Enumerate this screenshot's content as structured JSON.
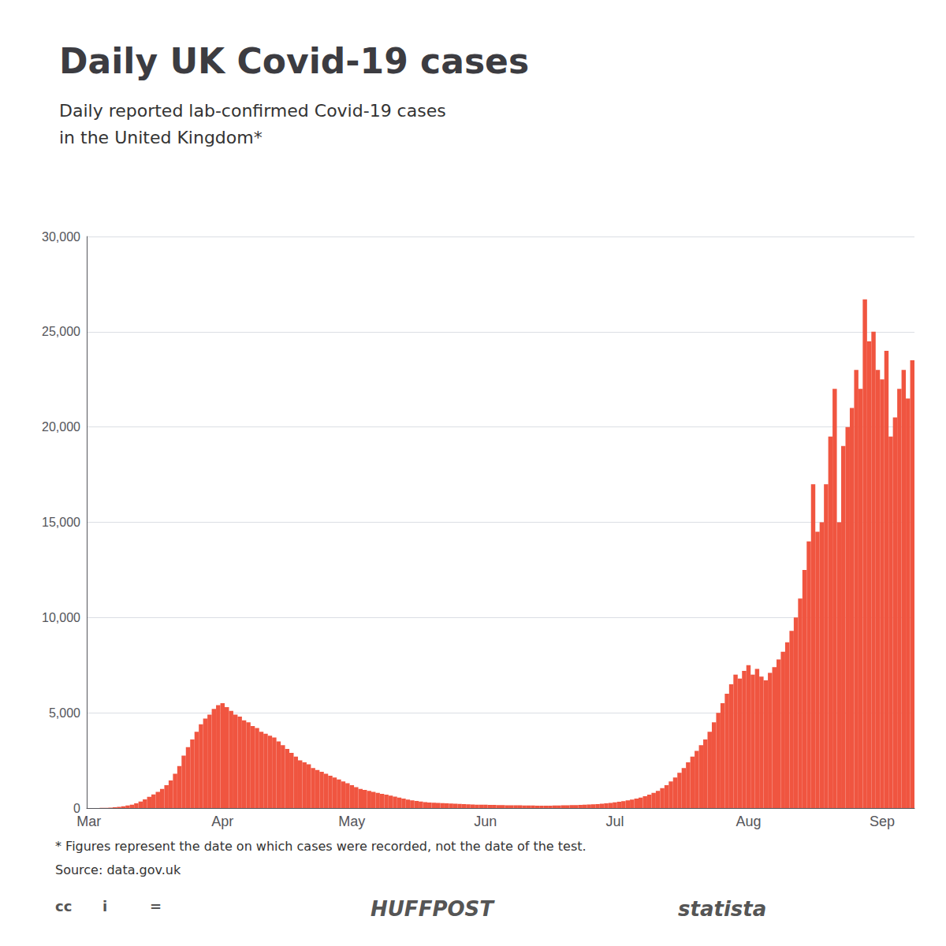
{
  "chart_data": {
    "type": "bar",
    "title": "Daily UK Covid-19 cases",
    "subtitle": [
      "Daily reported lab-confirmed Covid-19 cases",
      "in the United Kingdom*"
    ],
    "footnotes": [
      "* Figures represent the date on which cases were recorded, not the date of the test.",
      "Source: data.gov.uk"
    ],
    "logos": [
      "cc",
      "i",
      "=",
      "HUFFPOST",
      "statista"
    ],
    "color": "#f05540",
    "grid": true,
    "ylim": [
      0,
      30000
    ],
    "yticks": [
      0,
      {
        "value": 5000,
        "label": "5,000"
      },
      {
        "value": 10000,
        "label": "10,000"
      },
      {
        "value": 15000,
        "label": "15,000"
      },
      {
        "value": 20000,
        "label": "20,000"
      },
      {
        "value": 25000,
        "label": "25,000"
      },
      {
        "value": 30000,
        "label": "30,000"
      }
    ],
    "categories": [
      "Mar",
      null,
      null,
      null,
      null,
      null,
      null,
      null,
      null,
      null,
      null,
      null,
      null,
      null,
      null,
      null,
      null,
      null,
      null,
      null,
      null,
      null,
      null,
      null,
      null,
      null,
      null,
      null,
      null,
      null,
      null,
      "Apr",
      null,
      null,
      null,
      null,
      null,
      null,
      null,
      null,
      null,
      null,
      null,
      null,
      null,
      null,
      null,
      null,
      null,
      null,
      null,
      null,
      null,
      null,
      null,
      null,
      null,
      null,
      null,
      null,
      null,
      "May",
      null,
      null,
      null,
      null,
      null,
      null,
      null,
      null,
      null,
      null,
      null,
      null,
      null,
      null,
      null,
      null,
      null,
      null,
      null,
      null,
      null,
      null,
      null,
      null,
      null,
      null,
      null,
      null,
      null,
      null,
      "Jun",
      null,
      null,
      null,
      null,
      null,
      null,
      null,
      null,
      null,
      null,
      null,
      null,
      null,
      null,
      null,
      null,
      null,
      null,
      null,
      null,
      null,
      null,
      null,
      null,
      null,
      null,
      null,
      null,
      null,
      "Jul",
      null,
      null,
      null,
      null,
      null,
      null,
      null,
      null,
      null,
      null,
      null,
      null,
      null,
      null,
      null,
      null,
      null,
      null,
      null,
      null,
      null,
      null,
      null,
      null,
      null,
      null,
      null,
      null,
      null,
      null,
      "Aug",
      null,
      null,
      null,
      null,
      null,
      null,
      null,
      null,
      null,
      null,
      null,
      null,
      null,
      null,
      null,
      null,
      null,
      null,
      null,
      null,
      null,
      null,
      null,
      null,
      null,
      null,
      null,
      null,
      null,
      null,
      "Sep",
      null,
      null,
      null,
      null,
      null,
      null,
      null
    ],
    "values": [
      2,
      3,
      5,
      8,
      15,
      25,
      40,
      60,
      90,
      135,
      180,
      250,
      340,
      460,
      590,
      710,
      850,
      1000,
      1200,
      1450,
      1800,
      2200,
      2750,
      3200,
      3600,
      4000,
      4400,
      4700,
      4900,
      5200,
      5400,
      5500,
      5300,
      5100,
      4900,
      4800,
      4600,
      4500,
      4300,
      4200,
      4000,
      3900,
      3800,
      3700,
      3500,
      3300,
      3100,
      2900,
      2700,
      2500,
      2400,
      2300,
      2100,
      2000,
      1900,
      1800,
      1700,
      1600,
      1500,
      1400,
      1300,
      1200,
      1100,
      1000,
      950,
      900,
      850,
      800,
      750,
      700,
      650,
      600,
      550,
      500,
      450,
      400,
      370,
      340,
      310,
      290,
      280,
      270,
      260,
      250,
      240,
      230,
      220,
      210,
      200,
      190,
      180,
      180,
      175,
      170,
      165,
      160,
      155,
      150,
      150,
      145,
      140,
      135,
      135,
      130,
      125,
      125,
      120,
      125,
      130,
      135,
      140,
      150,
      155,
      160,
      170,
      180,
      190,
      200,
      210,
      230,
      250,
      270,
      300,
      330,
      360,
      400,
      450,
      500,
      550,
      620,
      700,
      800,
      900,
      1050,
      1200,
      1400,
      1600,
      1850,
      2100,
      2400,
      2700,
      3000,
      3300,
      3600,
      4000,
      4500,
      5000,
      5500,
      6000,
      6500,
      7000,
      6800,
      7200,
      7500,
      7000,
      7300,
      6900,
      6700,
      7100,
      7400,
      7800,
      8200,
      8700,
      9300,
      10000,
      11000,
      12500,
      14000,
      17000,
      14500,
      15000,
      17000,
      19500,
      22000,
      15000,
      19000,
      20000,
      21000,
      23000,
      22000,
      26700,
      24500,
      25000,
      23000,
      22500,
      24000,
      19500,
      20500,
      22000,
      23000,
      21500,
      23500
    ]
  }
}
